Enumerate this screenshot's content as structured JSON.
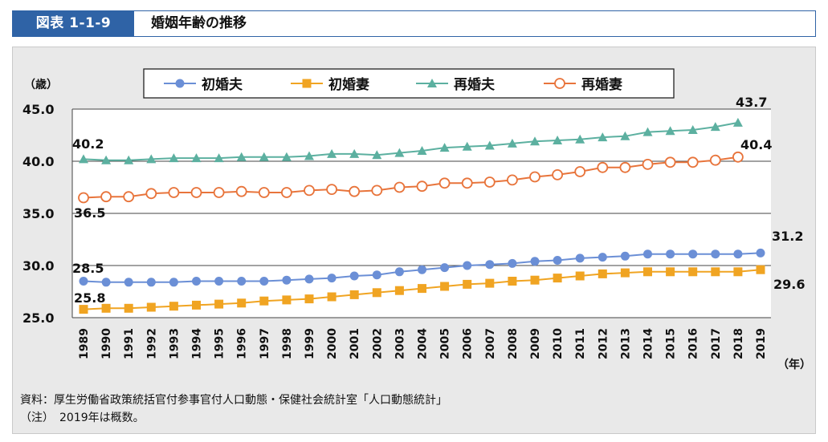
{
  "header": {
    "figure_number": "図表 1-1-9",
    "title": "婚姻年齢の推移"
  },
  "chart_data": {
    "type": "line",
    "title": "婚姻年齢の推移",
    "ylabel": "（歳）",
    "xlabel": "（年）",
    "ylim": [
      25.0,
      45.0
    ],
    "y_ticks": [
      "25.0",
      "30.0",
      "35.0",
      "40.0",
      "45.0"
    ],
    "grid": "horizontal",
    "legend_position": "top",
    "categories": [
      "1989",
      "1990",
      "1991",
      "1992",
      "1993",
      "1994",
      "1995",
      "1996",
      "1997",
      "1998",
      "1999",
      "2000",
      "2001",
      "2002",
      "2003",
      "2004",
      "2005",
      "2006",
      "2007",
      "2008",
      "2009",
      "2010",
      "2011",
      "2012",
      "2013",
      "2014",
      "2015",
      "2016",
      "2017",
      "2018",
      "2019"
    ],
    "series": [
      {
        "name": "初婚夫",
        "color": "#6b8fd6",
        "marker": "circle-filled",
        "values": [
          28.5,
          28.4,
          28.4,
          28.4,
          28.4,
          28.5,
          28.5,
          28.5,
          28.5,
          28.6,
          28.7,
          28.8,
          29.0,
          29.1,
          29.4,
          29.6,
          29.8,
          30.0,
          30.1,
          30.2,
          30.4,
          30.5,
          30.7,
          30.8,
          30.9,
          31.1,
          31.1,
          31.1,
          31.1,
          31.1,
          31.2
        ],
        "first_label": "28.5",
        "last_label": "31.2"
      },
      {
        "name": "初婚妻",
        "color": "#f0a422",
        "marker": "square-filled",
        "values": [
          25.8,
          25.9,
          25.9,
          26.0,
          26.1,
          26.2,
          26.3,
          26.4,
          26.6,
          26.7,
          26.8,
          27.0,
          27.2,
          27.4,
          27.6,
          27.8,
          28.0,
          28.2,
          28.3,
          28.5,
          28.6,
          28.8,
          29.0,
          29.2,
          29.3,
          29.4,
          29.4,
          29.4,
          29.4,
          29.4,
          29.6
        ],
        "first_label": "25.8",
        "last_label": "29.6"
      },
      {
        "name": "再婚夫",
        "color": "#5cb0a0",
        "marker": "triangle-filled",
        "values": [
          40.2,
          40.1,
          40.1,
          40.2,
          40.3,
          40.3,
          40.3,
          40.4,
          40.4,
          40.4,
          40.5,
          40.7,
          40.7,
          40.6,
          40.8,
          41.0,
          41.3,
          41.4,
          41.5,
          41.7,
          41.9,
          42.0,
          42.1,
          42.3,
          42.4,
          42.8,
          42.9,
          43.0,
          43.3,
          43.7,
          null
        ],
        "first_label": "40.2",
        "last_label": "43.7"
      },
      {
        "name": "再婚妻",
        "color": "#e8743b",
        "marker": "circle-open",
        "values": [
          36.5,
          36.6,
          36.6,
          36.9,
          37.0,
          37.0,
          37.0,
          37.1,
          37.0,
          37.0,
          37.2,
          37.3,
          37.1,
          37.2,
          37.5,
          37.6,
          37.9,
          37.9,
          38.0,
          38.2,
          38.5,
          38.7,
          39.0,
          39.4,
          39.4,
          39.7,
          39.9,
          39.9,
          40.1,
          40.4,
          null
        ],
        "first_label": "36.5",
        "last_label": "40.4"
      }
    ]
  },
  "notes": {
    "source": "資料：厚生労働省政策統括官付参事官付人口動態・保健社会統計室「人口動態統計」",
    "note": "（注）　2019年は概数。"
  }
}
